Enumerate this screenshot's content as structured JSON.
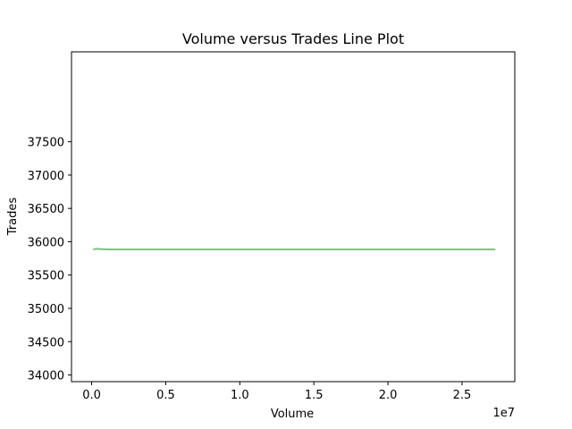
{
  "chart_data": {
    "type": "line",
    "title": "Volume versus Trades Line Plot",
    "xlabel": "Volume",
    "ylabel": "Trades",
    "x_offset_label": "1e7",
    "xlim": [
      -1360000,
      28560000
    ],
    "ylim": [
      33900,
      38850
    ],
    "xticks": [
      0,
      5000000,
      10000000,
      15000000,
      20000000,
      25000000
    ],
    "xtick_labels": [
      "0.0",
      "0.5",
      "1.0",
      "1.5",
      "2.0",
      "2.5"
    ],
    "yticks": [
      34000,
      34500,
      35000,
      35500,
      36000,
      36500,
      37000,
      37500
    ],
    "ytick_labels": [
      "34000",
      "34500",
      "35000",
      "35500",
      "36000",
      "36500",
      "37000",
      "37500"
    ],
    "grid": false,
    "series": [
      {
        "color": "#7fc17f",
        "x": [
          150000,
          300000,
          500000,
          800000,
          1200000,
          2200000,
          5000000,
          10000000,
          15000000,
          20000000,
          25000000,
          27200000
        ],
        "y": [
          35885,
          35895,
          35890,
          35887,
          35884,
          35883,
          35883,
          35883,
          35883,
          35883,
          35883,
          35883
        ]
      }
    ]
  }
}
